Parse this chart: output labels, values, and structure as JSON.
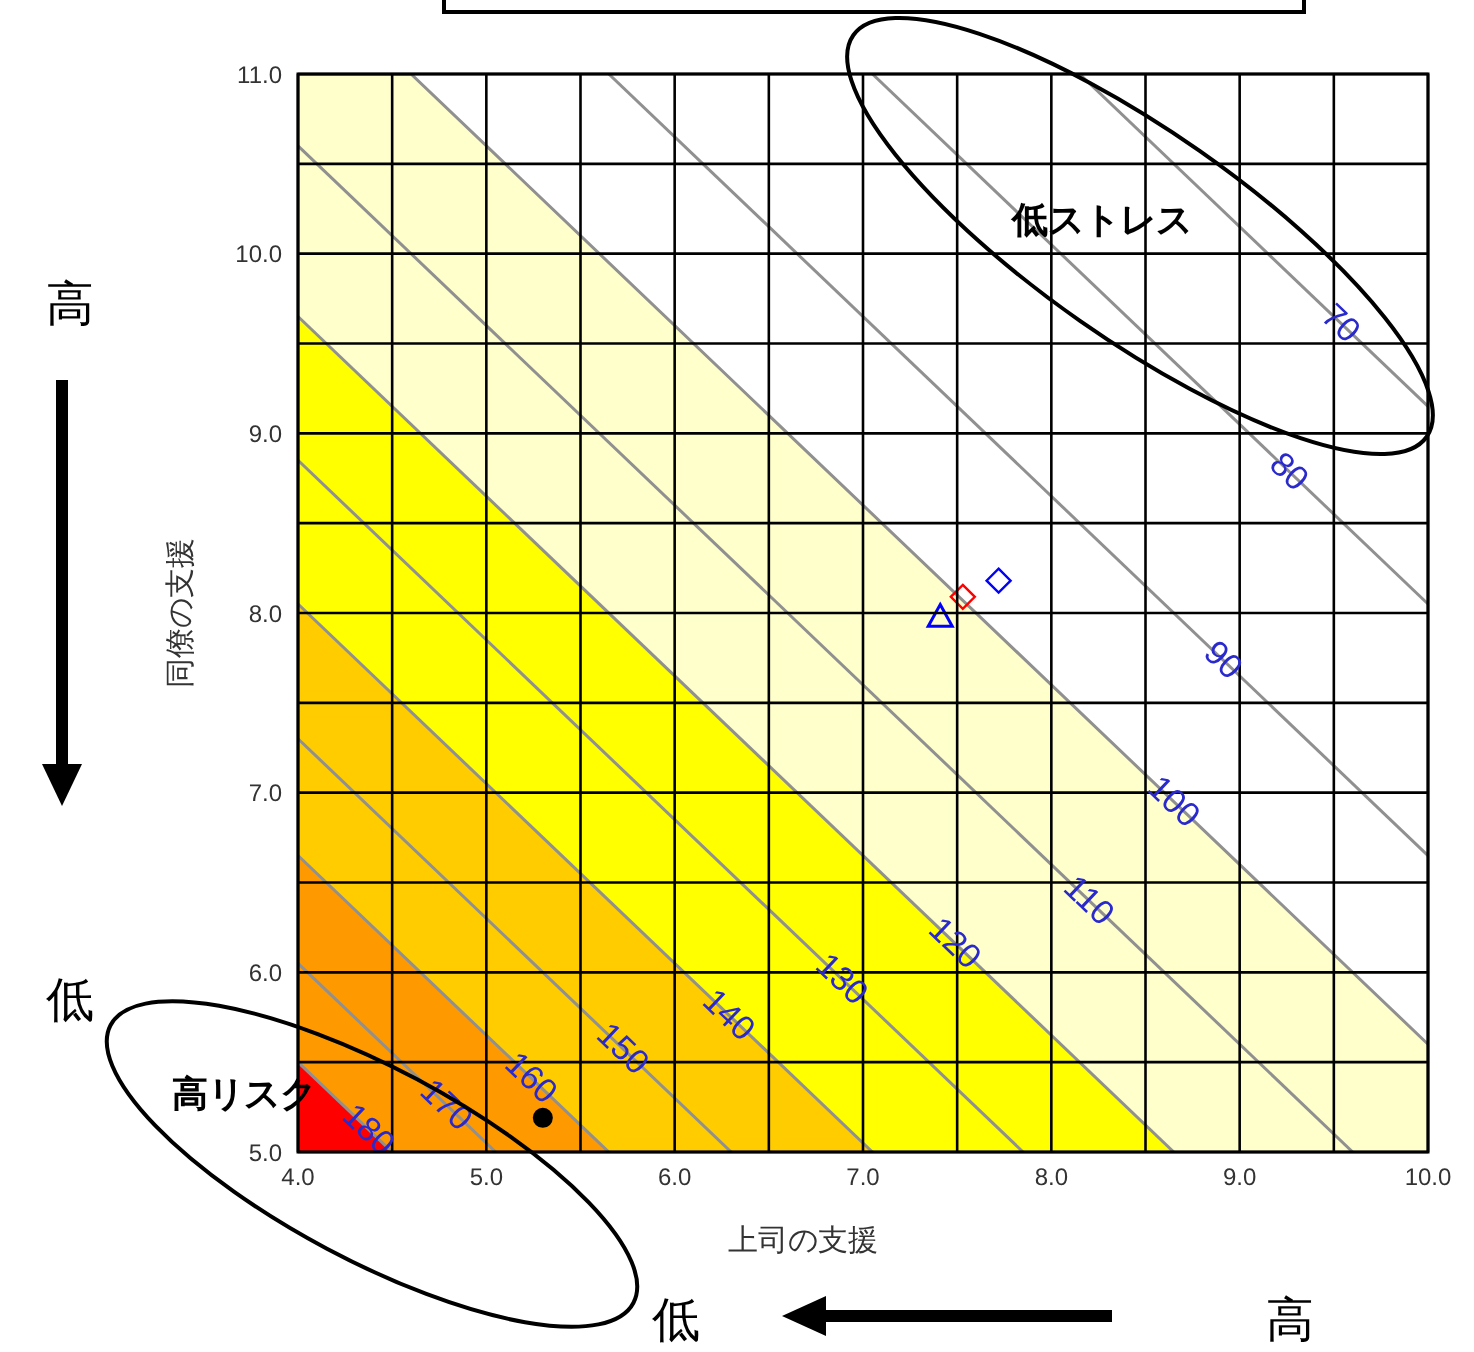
{
  "chart_data": {
    "type": "line",
    "xlabel": "上司の支援",
    "ylabel": "同僚の支援",
    "xlim": [
      4,
      10
    ],
    "ylim": [
      5,
      11
    ],
    "xticks": [
      {
        "value": 4,
        "label": "4.0"
      },
      {
        "value": 4.5,
        "label": null
      },
      {
        "value": 5,
        "label": "5.0"
      },
      {
        "value": 5.5,
        "label": null
      },
      {
        "value": 6,
        "label": "6.0"
      },
      {
        "value": 6.5,
        "label": null
      },
      {
        "value": 7,
        "label": "7.0"
      },
      {
        "value": 7.5,
        "label": null
      },
      {
        "value": 8,
        "label": "8.0"
      },
      {
        "value": 8.5,
        "label": null
      },
      {
        "value": 9,
        "label": "9.0"
      },
      {
        "value": 9.5,
        "label": null
      },
      {
        "value": 10,
        "label": "10.0"
      }
    ],
    "yticks": [
      {
        "value": 5,
        "label": "5.0"
      },
      {
        "value": 5.5,
        "label": null
      },
      {
        "value": 6,
        "label": "6.0"
      },
      {
        "value": 6.5,
        "label": null
      },
      {
        "value": 7,
        "label": "7.0"
      },
      {
        "value": 7.5,
        "label": null
      },
      {
        "value": 8,
        "label": "8.0"
      },
      {
        "value": 8.5,
        "label": null
      },
      {
        "value": 9,
        "label": "9.0"
      },
      {
        "value": 9.5,
        "label": null
      },
      {
        "value": 10,
        "label": "10.0"
      },
      {
        "value": 10.5,
        "label": null
      },
      {
        "value": 11,
        "label": "11.0"
      }
    ],
    "grid": true,
    "series": [
      {
        "name": "70",
        "color": "#909090",
        "x": [
          8.15,
          10
        ],
        "values": [
          11,
          9.15
        ]
      },
      {
        "name": "80",
        "color": "#909090",
        "x": [
          7.05,
          10
        ],
        "values": [
          11,
          8.05
        ]
      },
      {
        "name": "90",
        "color": "#909090",
        "x": [
          5.65,
          10
        ],
        "values": [
          11,
          6.65
        ]
      },
      {
        "type": "area",
        "name": "100",
        "color": "#ffffcc",
        "x": [
          4,
          4.6,
          10
        ],
        "values": [
          11,
          11,
          5.6
        ]
      },
      {
        "name": "110",
        "color": "#909090",
        "x": [
          4,
          9.6
        ],
        "values": [
          10.6,
          5
        ]
      },
      {
        "type": "area",
        "name": "120",
        "color": "#ffff00",
        "x": [
          4,
          8.65
        ],
        "values": [
          9.65,
          5
        ]
      },
      {
        "name": "130",
        "color": "#909090",
        "x": [
          4,
          7.85
        ],
        "values": [
          8.85,
          5
        ]
      },
      {
        "type": "area",
        "name": "140",
        "color": "#ffcc00",
        "x": [
          4,
          7.05
        ],
        "values": [
          8.05,
          5
        ]
      },
      {
        "name": "150",
        "color": "#909090",
        "x": [
          4,
          6.3
        ],
        "values": [
          7.3,
          5
        ]
      },
      {
        "type": "area",
        "name": "160",
        "color": "#ff9900",
        "x": [
          4,
          5.65
        ],
        "values": [
          6.65,
          5
        ]
      },
      {
        "name": "170",
        "color": "#909090",
        "x": [
          4,
          5.05
        ],
        "values": [
          6.05,
          5
        ]
      },
      {
        "type": "area",
        "name": "180",
        "color": "#ff0000",
        "x": [
          4,
          4.5
        ],
        "values": [
          5.5,
          5
        ]
      },
      {
        "type": "scatter",
        "color": "#0000ff",
        "marker": "triangle",
        "x": [
          7.41
        ],
        "values": [
          7.98
        ]
      },
      {
        "type": "scatter",
        "color": "#ff0000",
        "marker": "diamond",
        "x": [
          7.53
        ],
        "values": [
          8.09
        ]
      },
      {
        "type": "scatter",
        "color": "#0000ff",
        "marker": "diamond",
        "x": [
          7.72
        ],
        "values": [
          8.18
        ]
      },
      {
        "type": "scatter",
        "color": "#000000",
        "marker": "circle",
        "x": [
          5.3
        ],
        "values": [
          5.19
        ]
      }
    ],
    "annotations": [
      "低ストレス",
      "高リスク",
      "高",
      "低",
      "低",
      "高"
    ]
  }
}
